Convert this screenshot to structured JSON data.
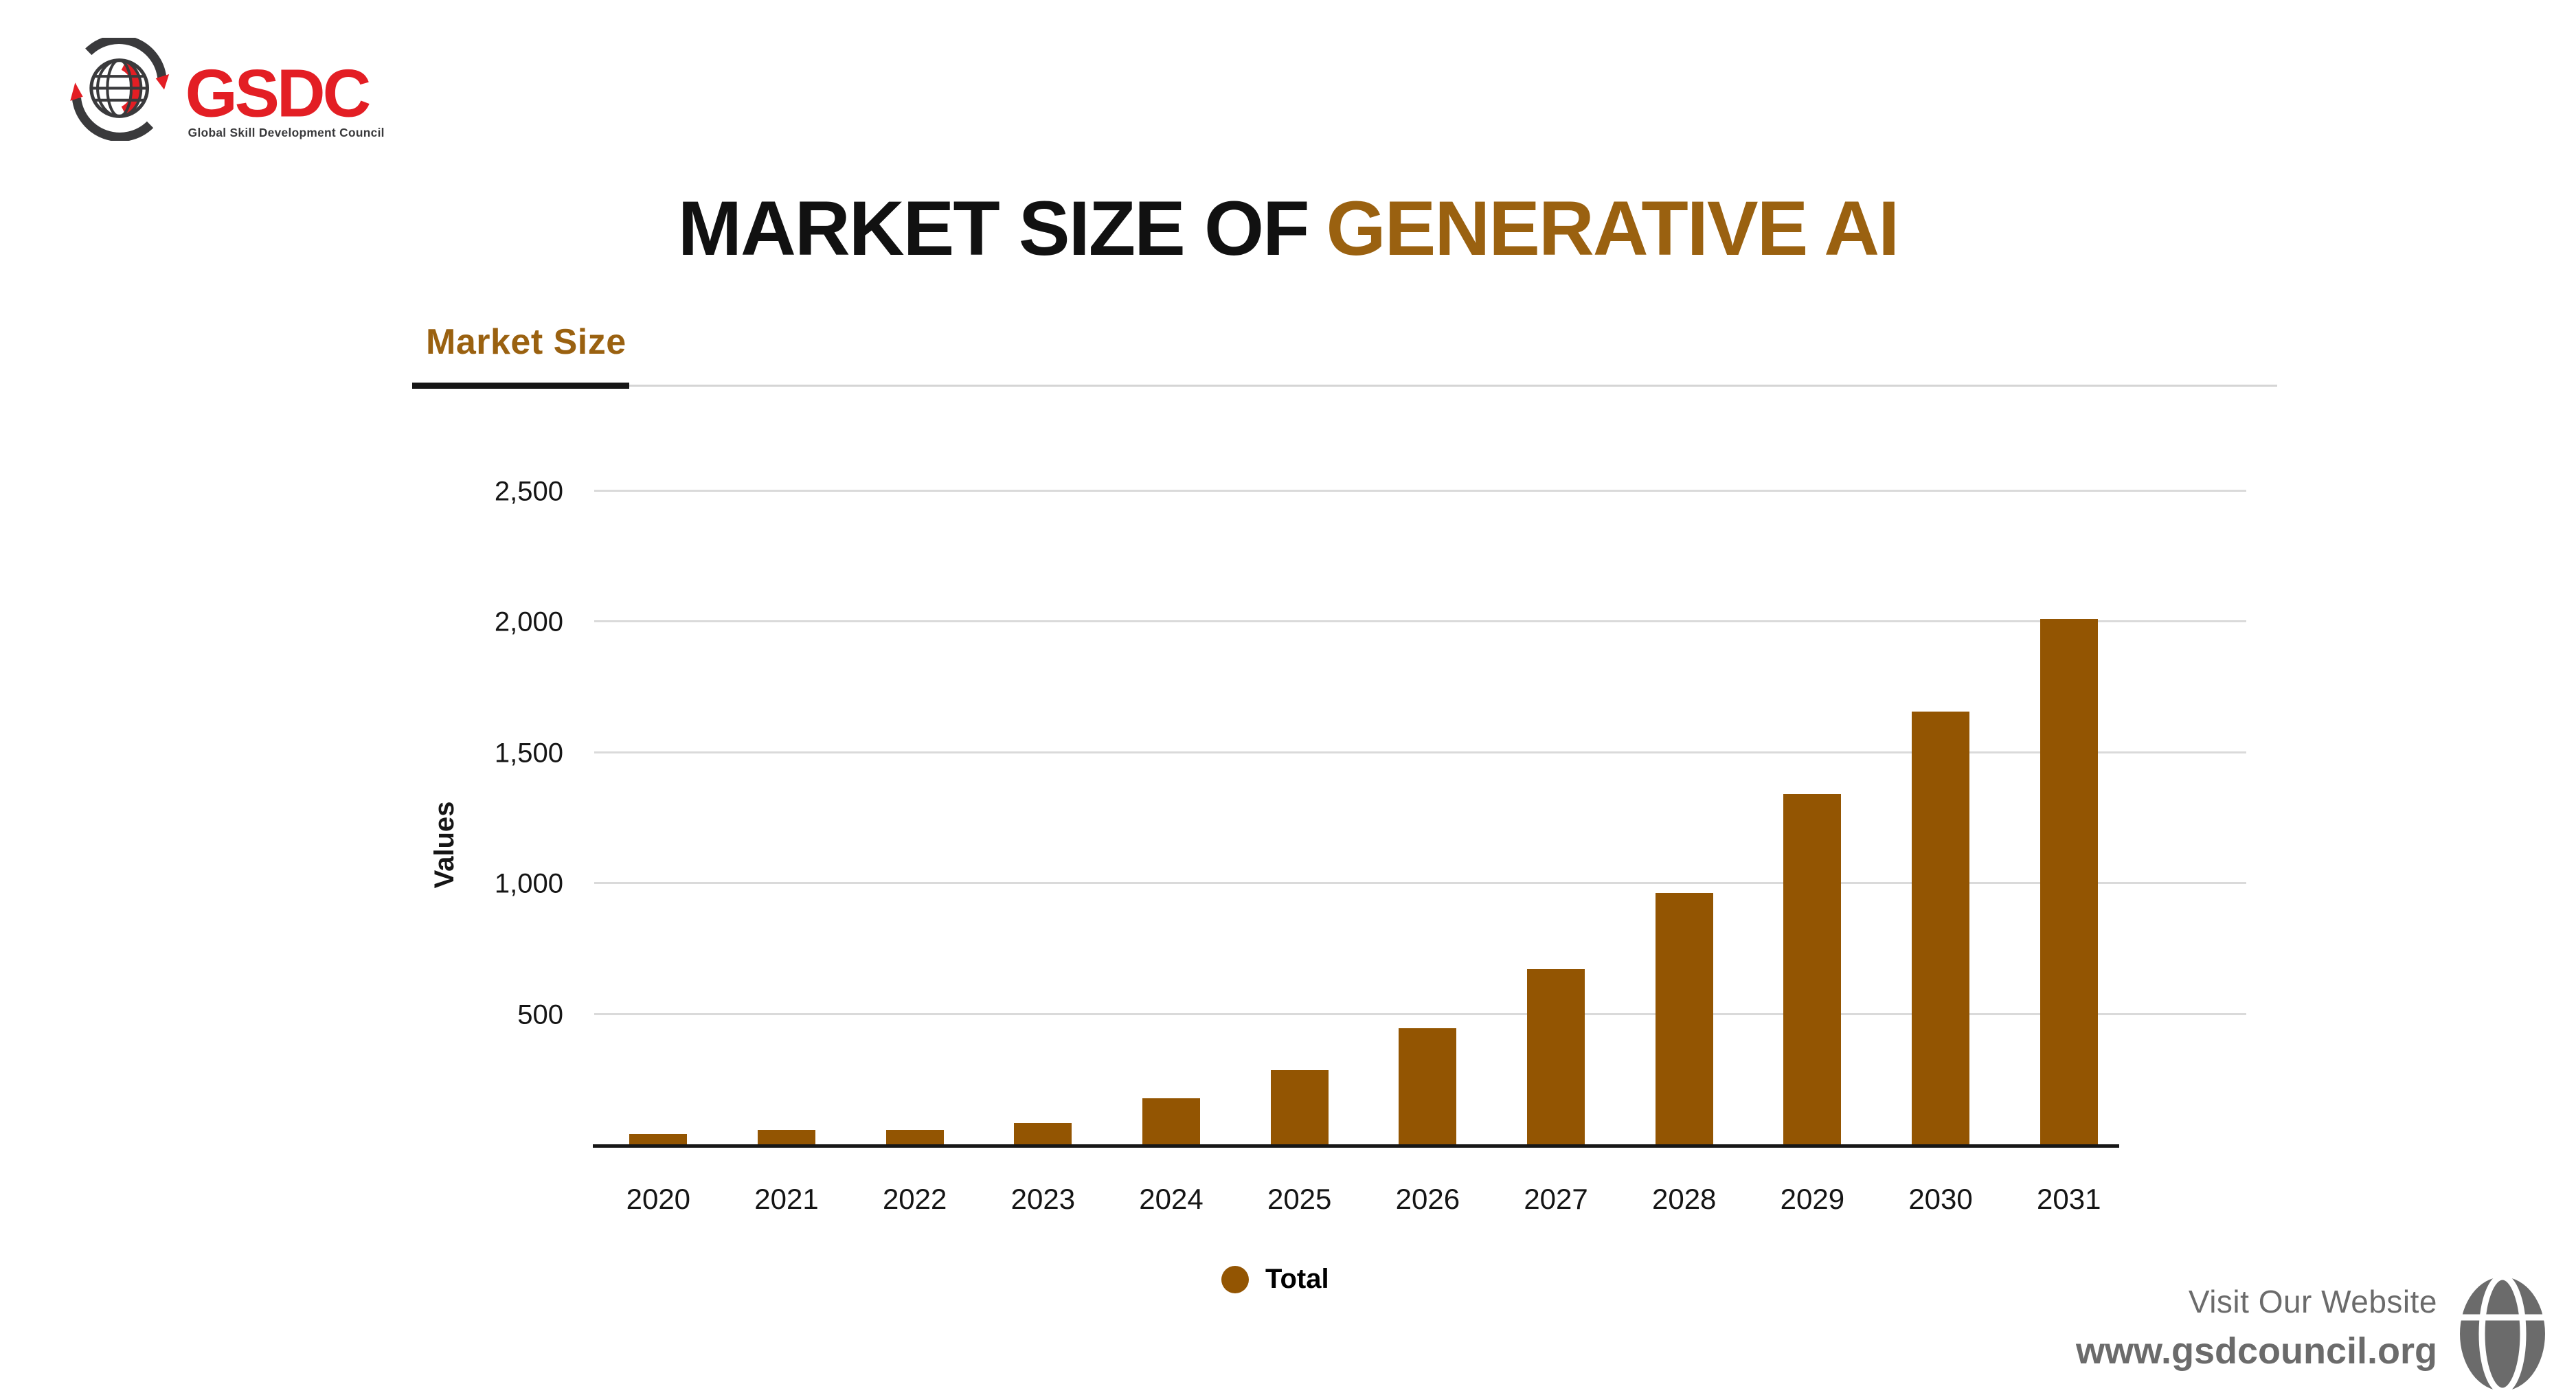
{
  "brand": {
    "name": "GSDC",
    "tagline": "Global Skill Development Council"
  },
  "title": {
    "prefix": "MARKET SIZE OF",
    "highlight": "GENERATIVE AI"
  },
  "tab": {
    "label": "Market Size"
  },
  "chart_data": {
    "type": "bar",
    "title": "Market Size",
    "categories": [
      "2020",
      "2021",
      "2022",
      "2023",
      "2024",
      "2025",
      "2026",
      "2027",
      "2028",
      "2029",
      "2030",
      "2031"
    ],
    "series": [
      {
        "name": "Total",
        "values": [
          40,
          54,
          56,
          82,
          175,
          283,
          443,
          670,
          960,
          1340,
          1655,
          2010
        ]
      }
    ],
    "xlabel": "",
    "ylabel": "Values",
    "ylim": [
      0,
      2500
    ],
    "yticks": [
      500,
      1000,
      1500,
      2000,
      2500
    ],
    "ytick_labels": [
      "500",
      "1,000",
      "1,500",
      "2,000",
      "2,500"
    ],
    "grid": true,
    "legend_position": "bottom",
    "bar_color": "#935502"
  },
  "legend": {
    "label": "Total",
    "color": "#935502"
  },
  "footer": {
    "line1": "Visit Our Website",
    "line2": "www.gsdcouncil.org"
  },
  "colors": {
    "accent_brown": "#9A6110",
    "bar_brown": "#935502",
    "logo_red": "#E31E24",
    "logo_dark": "#3A3A3C",
    "grid_gray": "#DADADA",
    "axis_black": "#171717",
    "footer_gray": "#6B6B6B"
  }
}
